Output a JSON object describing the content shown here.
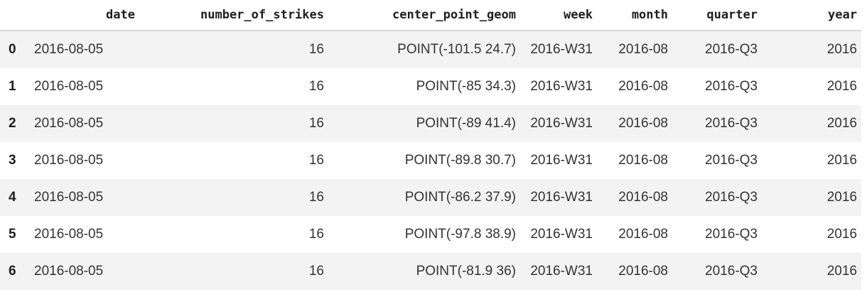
{
  "table": {
    "headers": [
      "",
      "date",
      "number_of_strikes",
      "center_point_geom",
      "week",
      "month",
      "quarter",
      "year"
    ],
    "rows": [
      {
        "index": "0",
        "date": "2016-08-05",
        "number_of_strikes": "16",
        "center_point_geom": "POINT(-101.5 24.7)",
        "week": "2016-W31",
        "month": "2016-08",
        "quarter": "2016-Q3",
        "year": "2016"
      },
      {
        "index": "1",
        "date": "2016-08-05",
        "number_of_strikes": "16",
        "center_point_geom": "POINT(-85 34.3)",
        "week": "2016-W31",
        "month": "2016-08",
        "quarter": "2016-Q3",
        "year": "2016"
      },
      {
        "index": "2",
        "date": "2016-08-05",
        "number_of_strikes": "16",
        "center_point_geom": "POINT(-89 41.4)",
        "week": "2016-W31",
        "month": "2016-08",
        "quarter": "2016-Q3",
        "year": "2016"
      },
      {
        "index": "3",
        "date": "2016-08-05",
        "number_of_strikes": "16",
        "center_point_geom": "POINT(-89.8 30.7)",
        "week": "2016-W31",
        "month": "2016-08",
        "quarter": "2016-Q3",
        "year": "2016"
      },
      {
        "index": "4",
        "date": "2016-08-05",
        "number_of_strikes": "16",
        "center_point_geom": "POINT(-86.2 37.9)",
        "week": "2016-W31",
        "month": "2016-08",
        "quarter": "2016-Q3",
        "year": "2016"
      },
      {
        "index": "5",
        "date": "2016-08-05",
        "number_of_strikes": "16",
        "center_point_geom": "POINT(-97.8 38.9)",
        "week": "2016-W31",
        "month": "2016-08",
        "quarter": "2016-Q3",
        "year": "2016"
      },
      {
        "index": "6",
        "date": "2016-08-05",
        "number_of_strikes": "16",
        "center_point_geom": "POINT(-81.9 36)",
        "week": "2016-W31",
        "month": "2016-08",
        "quarter": "2016-Q3",
        "year": "2016"
      }
    ]
  }
}
